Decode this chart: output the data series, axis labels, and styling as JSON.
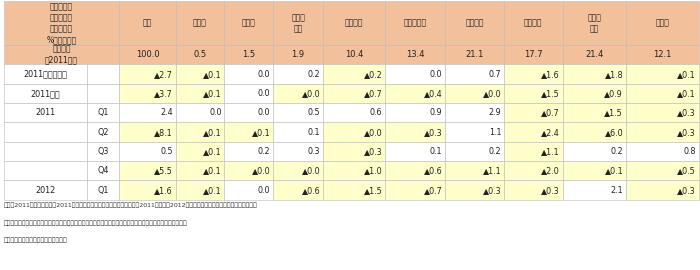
{
  "header_col_label": "前年比及び\n前年同期比\n《寄与度、\n%ポイント》",
  "headers": [
    "総額",
    "食料品",
    "原料品",
    "鉱物性\n燃料",
    "化学製品",
    "原料別製品",
    "一般機械",
    "電気機器",
    "輸送用\n機器",
    "その他"
  ],
  "export_label": "輸出構成\n（2011年）",
  "export_vals": [
    "100.0",
    "0.5",
    "1.5",
    "1.9",
    "10.4",
    "13.4",
    "21.1",
    "17.7",
    "21.4",
    "12.1"
  ],
  "data_rows": [
    {
      "label1": "2011年（暦年）",
      "label2": "",
      "vals": [
        "▲2.7",
        "▲0.1",
        "0.0",
        "0.2",
        "▲0.2",
        "0.0",
        "0.7",
        "▲1.6",
        "▲1.8",
        "▲0.1"
      ],
      "yellow": [
        true,
        true,
        false,
        false,
        true,
        false,
        false,
        true,
        true,
        true
      ]
    },
    {
      "label1": "2011年度",
      "label2": "",
      "vals": [
        "▲3.7",
        "▲0.1",
        "0.0",
        "▲0.0",
        "▲0.7",
        "▲0.4",
        "▲0.0",
        "▲1.5",
        "▲0.9",
        "▲0.1"
      ],
      "yellow": [
        true,
        true,
        false,
        true,
        true,
        true,
        true,
        true,
        true,
        true
      ]
    },
    {
      "label1": "2011",
      "label2": "Q1",
      "vals": [
        "2.4",
        "0.0",
        "0.0",
        "0.5",
        "0.6",
        "0.9",
        "2.9",
        "▲0.7",
        "▲1.5",
        "▲0.3"
      ],
      "yellow": [
        false,
        false,
        false,
        false,
        false,
        false,
        false,
        true,
        true,
        true
      ]
    },
    {
      "label1": "",
      "label2": "Q2",
      "vals": [
        "▲8.1",
        "▲0.1",
        "▲0.1",
        "0.1",
        "▲0.0",
        "▲0.3",
        "1.1",
        "▲2.4",
        "▲6.0",
        "▲0.3"
      ],
      "yellow": [
        true,
        true,
        true,
        false,
        true,
        true,
        false,
        true,
        true,
        true
      ]
    },
    {
      "label1": "",
      "label2": "Q3",
      "vals": [
        "0.5",
        "▲0.1",
        "0.2",
        "0.3",
        "▲0.3",
        "0.1",
        "0.2",
        "▲1.1",
        "0.2",
        "0.8"
      ],
      "yellow": [
        false,
        true,
        false,
        false,
        true,
        false,
        false,
        true,
        false,
        false
      ]
    },
    {
      "label1": "",
      "label2": "Q4",
      "vals": [
        "▲5.5",
        "▲0.1",
        "▲0.0",
        "▲0.0",
        "▲1.0",
        "▲0.6",
        "▲1.1",
        "▲2.0",
        "▲0.1",
        "▲0.5"
      ],
      "yellow": [
        true,
        true,
        true,
        true,
        true,
        true,
        true,
        true,
        true,
        true
      ]
    },
    {
      "label1": "2012",
      "label2": "Q1",
      "vals": [
        "▲1.6",
        "▲0.1",
        "0.0",
        "▲0.6",
        "▲1.5",
        "▲0.7",
        "▲0.3",
        "▲0.3",
        "2.1",
        "▲0.3"
      ],
      "yellow": [
        true,
        true,
        false,
        true,
        true,
        true,
        true,
        true,
        false,
        true
      ]
    }
  ],
  "footnote_lines": [
    "備考：2011年（暦年）及び2011年各四半期の寄与度は確定値から作成。2011年度及び2012年第１四半期の寄与度は確報値から作成。",
    "　　　品目の分類は、「貿易統計」の概況品ベース。黄色の網掛けは、マイナスの寄与度となっている品目。",
    "資料：財務省「貿易統計」から作成。"
  ],
  "header_bg": "#F2C09A",
  "yellow_bg": "#FFFFCC",
  "white_bg": "#FFFFFF",
  "border_color": "#BBBBBB"
}
